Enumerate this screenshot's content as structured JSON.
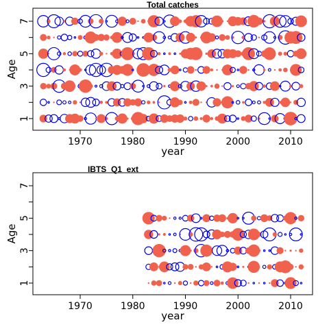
{
  "colors": {
    "positive": "#f0624d",
    "negative": "#0000ee"
  },
  "chart_data": [
    {
      "type": "scatter",
      "subtype": "bubble-residuals",
      "title": "Total catches",
      "xlabel": "year",
      "ylabel": "Age",
      "xlim": [
        1962,
        2012
      ],
      "ylim": [
        1,
        7
      ],
      "x_ticks": [
        1970,
        1980,
        1990,
        2000,
        2010
      ],
      "y_ticks": [
        1,
        2,
        3,
        4,
        5,
        6,
        7
      ],
      "y_tick_labels": [
        "1",
        "",
        "3",
        "",
        "5",
        "",
        "7"
      ],
      "years": [
        1963,
        2012
      ],
      "ages": [
        1,
        2,
        3,
        4,
        5,
        6,
        7
      ],
      "grid": false,
      "legend": "none"
    },
    {
      "type": "scatter",
      "subtype": "bubble-residuals",
      "title": "IBTS_Q1_ext",
      "xlabel": "year",
      "ylabel": "Age",
      "xlim": [
        1962,
        2012
      ],
      "ylim": [
        1,
        7
      ],
      "x_ticks": [
        1970,
        1980,
        1990,
        2000,
        2010
      ],
      "y_ticks": [
        1,
        2,
        3,
        4,
        5,
        6,
        7
      ],
      "y_tick_labels": [
        "1",
        "",
        "3",
        "",
        "5",
        "",
        "7"
      ],
      "years": [
        1983,
        2012
      ],
      "ages": [
        1,
        2,
        3,
        4,
        5
      ],
      "grid": false,
      "legend": "none"
    }
  ]
}
